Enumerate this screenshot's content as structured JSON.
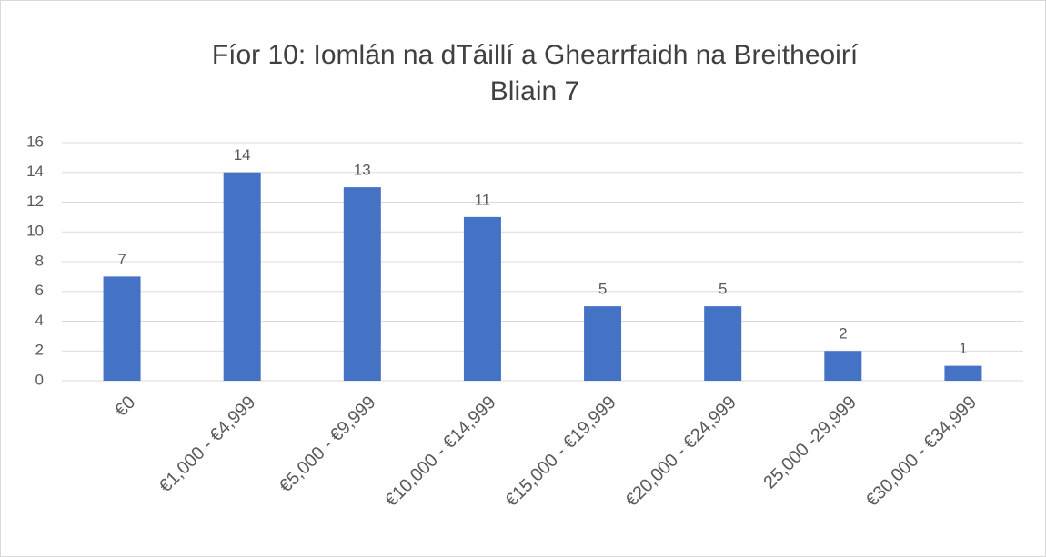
{
  "chart_data": {
    "type": "bar",
    "title": [
      "Fíor 10: Iomlán na dTáillí a Ghearrfaidh na Breitheoirí",
      "Bliain 7"
    ],
    "categories": [
      "€0",
      "€1,000 - €4,999",
      "€5,000 - €9,999",
      "€10,000 - €14,999",
      "€15,000 - €19,999",
      "€20,000 - €24,999",
      "25,000 -29,999",
      "€30,000 - €34,999"
    ],
    "values": [
      7,
      14,
      13,
      11,
      5,
      5,
      2,
      1
    ],
    "color": "#4472c4",
    "ylim": [
      0,
      16
    ],
    "yticks": [
      0,
      2,
      4,
      6,
      8,
      10,
      12,
      14,
      16
    ],
    "grid": true
  }
}
